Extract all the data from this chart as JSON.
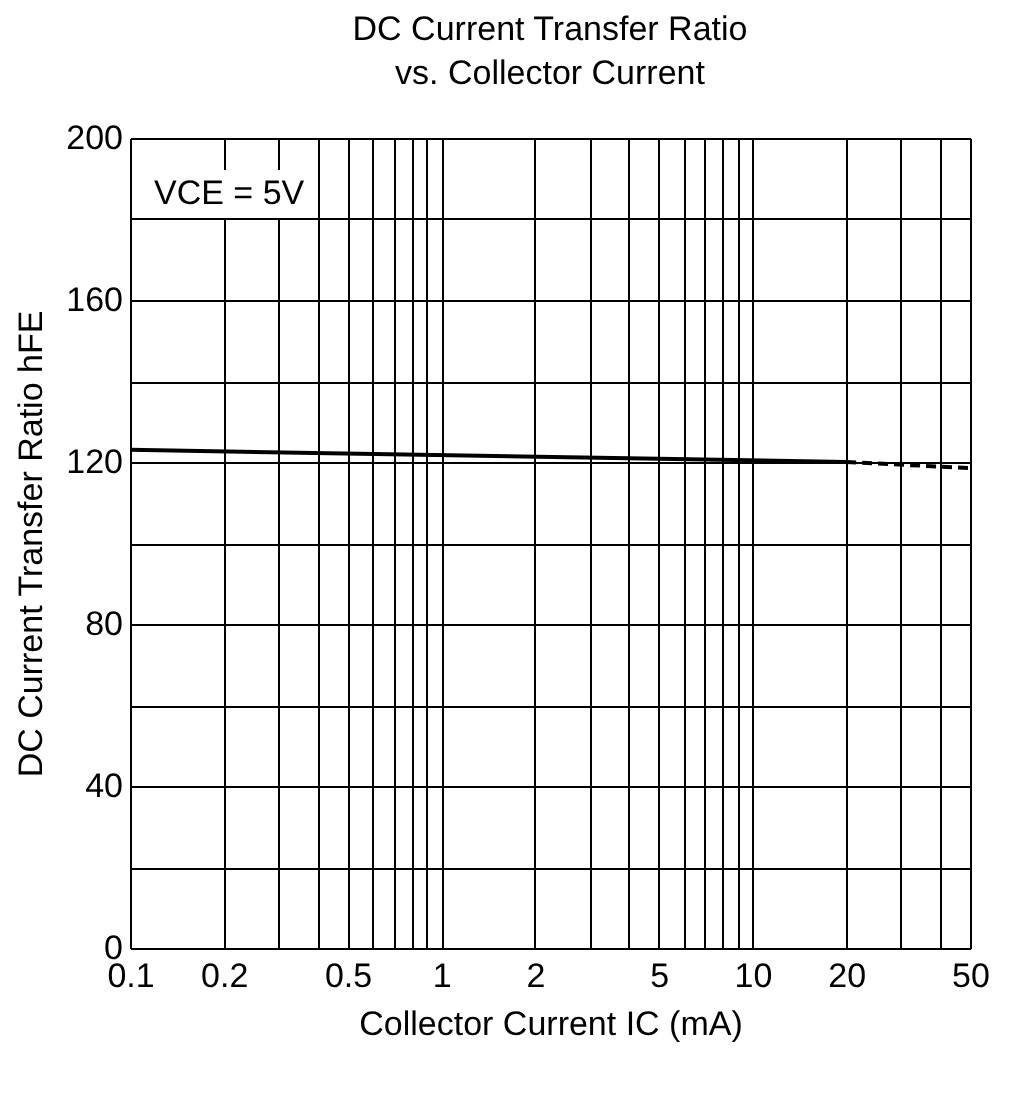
{
  "chart_data": {
    "type": "line",
    "title": "DC Current Transfer Ratio vs. Collector Current",
    "xlabel": "Collector Current  IC (mA)",
    "ylabel": "DC Current Transfer Ratio  hFE",
    "log": "x",
    "grid": true,
    "marker": "none",
    "series": [
      {
        "color": "#000000",
        "line_style": "solid",
        "x": [
          0.1,
          20
        ],
        "values": [
          123,
          120
        ]
      },
      {
        "color": "#000000",
        "line_style": "dashed",
        "x": [
          20,
          50
        ],
        "values": [
          120,
          118.5
        ]
      }
    ],
    "xlim": [
      0.1,
      50
    ],
    "xticks": [
      0.1,
      0.2,
      {
        "value": 0.3,
        "label": null
      },
      {
        "value": 0.4,
        "label": null
      },
      0.5,
      {
        "value": 0.6,
        "label": null
      },
      {
        "value": 0.7,
        "label": null
      },
      {
        "value": 0.8,
        "label": null
      },
      {
        "value": 0.9,
        "label": null
      },
      1,
      2,
      {
        "value": 3,
        "label": null
      },
      {
        "value": 4,
        "label": null
      },
      5,
      {
        "value": 6,
        "label": null
      },
      {
        "value": 7,
        "label": null
      },
      {
        "value": 8,
        "label": null
      },
      {
        "value": 9,
        "label": null
      },
      10,
      20,
      {
        "value": 30,
        "label": null
      },
      {
        "value": 40,
        "label": null
      },
      50
    ],
    "ylim": [
      0,
      200
    ],
    "yticks": [
      0,
      {
        "value": 20,
        "label": null
      },
      40,
      {
        "value": 60,
        "label": null
      },
      80,
      {
        "value": 100,
        "label": null
      },
      120,
      {
        "value": 140,
        "label": null
      },
      160,
      {
        "value": 180,
        "label": null
      },
      200
    ],
    "annotations": [
      "VCE = 5V"
    ]
  }
}
